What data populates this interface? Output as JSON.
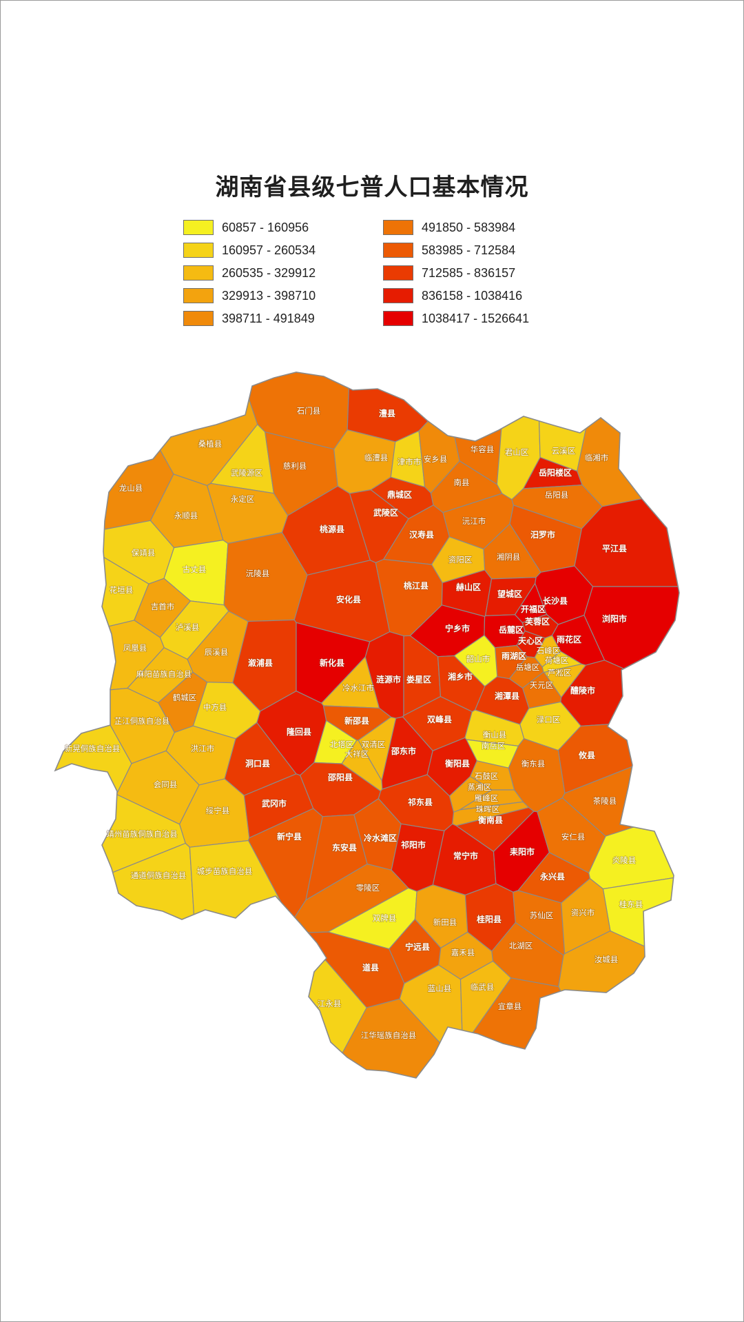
{
  "title": "湖南省县级七普人口基本情况",
  "legend": [
    {
      "label": "60857 - 160956",
      "color": "#f5f021"
    },
    {
      "label": "160957 - 260534",
      "color": "#f5d318"
    },
    {
      "label": "260535 - 329912",
      "color": "#f5bb12"
    },
    {
      "label": "329913 - 398710",
      "color": "#f3a30e"
    },
    {
      "label": "398711 - 491849",
      "color": "#f08a0a"
    },
    {
      "label": "491850 - 583984",
      "color": "#ee7306"
    },
    {
      "label": "583985 - 712584",
      "color": "#ec5a04"
    },
    {
      "label": "712585 - 836157",
      "color": "#ea3b02"
    },
    {
      "label": "836158 - 1038416",
      "color": "#e61c01"
    },
    {
      "label": "1038417 - 1526641",
      "color": "#e50000"
    }
  ],
  "counties": [
    {
      "name": "石门县",
      "cls": 5
    },
    {
      "name": "澧县",
      "cls": 7
    },
    {
      "name": "桑植县",
      "cls": 3
    },
    {
      "name": "武陵源区",
      "cls": 1
    },
    {
      "name": "慈利县",
      "cls": 5
    },
    {
      "name": "临澧县",
      "cls": 3
    },
    {
      "name": "津市市",
      "cls": 1
    },
    {
      "name": "安乡县",
      "cls": 4
    },
    {
      "name": "华容县",
      "cls": 5
    },
    {
      "name": "君山区",
      "cls": 1
    },
    {
      "name": "云溪区",
      "cls": 1
    },
    {
      "name": "临湘市",
      "cls": 4
    },
    {
      "name": "岳阳楼区",
      "cls": 8
    },
    {
      "name": "龙山县",
      "cls": 4
    },
    {
      "name": "永定区",
      "cls": 3
    },
    {
      "name": "鼎城区",
      "cls": 7
    },
    {
      "name": "南县",
      "cls": 5
    },
    {
      "name": "岳阳县",
      "cls": 5
    },
    {
      "name": "永顺县",
      "cls": 3
    },
    {
      "name": "武陵区",
      "cls": 7
    },
    {
      "name": "沅江市",
      "cls": 5
    },
    {
      "name": "桃源县",
      "cls": 7
    },
    {
      "name": "汉寿县",
      "cls": 6
    },
    {
      "name": "汨罗市",
      "cls": 6
    },
    {
      "name": "平江县",
      "cls": 8
    },
    {
      "name": "保靖县",
      "cls": 1
    },
    {
      "name": "古丈县",
      "cls": 0
    },
    {
      "name": "资阳区",
      "cls": 2
    },
    {
      "name": "湘阴县",
      "cls": 5
    },
    {
      "name": "花垣县",
      "cls": 1
    },
    {
      "name": "沅陵县",
      "cls": 5
    },
    {
      "name": "吉首市",
      "cls": 3
    },
    {
      "name": "安化县",
      "cls": 7
    },
    {
      "name": "桃江县",
      "cls": 6
    },
    {
      "name": "赫山区",
      "cls": 8
    },
    {
      "name": "望城区",
      "cls": 8
    },
    {
      "name": "开福区",
      "cls": 9
    },
    {
      "name": "长沙县",
      "cls": 9
    },
    {
      "name": "浏阳市",
      "cls": 9
    },
    {
      "name": "泸溪县",
      "cls": 1
    },
    {
      "name": "宁乡市",
      "cls": 9
    },
    {
      "name": "岳麓区",
      "cls": 9
    },
    {
      "name": "芙蓉区",
      "cls": 8
    },
    {
      "name": "天心区",
      "cls": 8
    },
    {
      "name": "雨花区",
      "cls": 9
    },
    {
      "name": "凤凰县",
      "cls": 2
    },
    {
      "name": "辰溪县",
      "cls": 3
    },
    {
      "name": "雨湖区",
      "cls": 6
    },
    {
      "name": "石峰区",
      "cls": 2
    },
    {
      "name": "荷塘区",
      "cls": 1
    },
    {
      "name": "芦淞区",
      "cls": 2
    },
    {
      "name": "麻阳苗族自治县",
      "cls": 2
    },
    {
      "name": "溆浦县",
      "cls": 7
    },
    {
      "name": "新化县",
      "cls": 9
    },
    {
      "name": "冷水江市",
      "cls": 2
    },
    {
      "name": "涟源市",
      "cls": 8
    },
    {
      "name": "娄星区",
      "cls": 7
    },
    {
      "name": "湘乡市",
      "cls": 7
    },
    {
      "name": "韶山市",
      "cls": 0
    },
    {
      "name": "岳塘区",
      "cls": 5
    },
    {
      "name": "天元区",
      "cls": 5
    },
    {
      "name": "醴陵市",
      "cls": 8
    },
    {
      "name": "鹤城区",
      "cls": 4
    },
    {
      "name": "中方县",
      "cls": 1
    },
    {
      "name": "湘潭县",
      "cls": 7
    },
    {
      "name": "渌口区",
      "cls": 1
    },
    {
      "name": "芷江侗族自治县",
      "cls": 2
    },
    {
      "name": "新晃侗族自治县",
      "cls": 1
    },
    {
      "name": "隆回县",
      "cls": 8
    },
    {
      "name": "新邵县",
      "cls": 6
    },
    {
      "name": "双峰县",
      "cls": 7
    },
    {
      "name": "衡山县",
      "cls": 1
    },
    {
      "name": "南岳区",
      "cls": 0
    },
    {
      "name": "攸县",
      "cls": 6
    },
    {
      "name": "洪江市",
      "cls": 2
    },
    {
      "name": "北塔区",
      "cls": 0
    },
    {
      "name": "双清区",
      "cls": 2
    },
    {
      "name": "大祥区",
      "cls": 2
    },
    {
      "name": "邵东市",
      "cls": 8
    },
    {
      "name": "衡阳县",
      "cls": 8
    },
    {
      "name": "衡东县",
      "cls": 5
    },
    {
      "name": "会同县",
      "cls": 2
    },
    {
      "name": "洞口县",
      "cls": 7
    },
    {
      "name": "邵阳县",
      "cls": 7
    },
    {
      "name": "石鼓区",
      "cls": 3
    },
    {
      "name": "蒸湘区",
      "cls": 3
    },
    {
      "name": "雁峰区",
      "cls": 3
    },
    {
      "name": "珠晖区",
      "cls": 3
    },
    {
      "name": "衡南县",
      "cls": 7
    },
    {
      "name": "茶陵县",
      "cls": 5
    },
    {
      "name": "绥宁县",
      "cls": 2
    },
    {
      "name": "武冈市",
      "cls": 7
    },
    {
      "name": "祁东县",
      "cls": 7
    },
    {
      "name": "靖州苗族侗族自治县",
      "cls": 1
    },
    {
      "name": "新宁县",
      "cls": 6
    },
    {
      "name": "冷水滩区",
      "cls": 6
    },
    {
      "name": "炎陵县",
      "cls": 0
    },
    {
      "name": "安仁县",
      "cls": 5
    },
    {
      "name": "东安县",
      "cls": 6
    },
    {
      "name": "祁阳市",
      "cls": 8
    },
    {
      "name": "常宁市",
      "cls": 8
    },
    {
      "name": "耒阳市",
      "cls": 9
    },
    {
      "name": "通道侗族自治县",
      "cls": 1
    },
    {
      "name": "城步苗族自治县",
      "cls": 1
    },
    {
      "name": "永兴县",
      "cls": 6
    },
    {
      "name": "零陵区",
      "cls": 5
    },
    {
      "name": "桂东县",
      "cls": 0
    },
    {
      "name": "双牌县",
      "cls": 0
    },
    {
      "name": "新田县",
      "cls": 3
    },
    {
      "name": "桂阳县",
      "cls": 7
    },
    {
      "name": "苏仙区",
      "cls": 5
    },
    {
      "name": "资兴市",
      "cls": 3
    },
    {
      "name": "宁远县",
      "cls": 6
    },
    {
      "name": "嘉禾县",
      "cls": 3
    },
    {
      "name": "北湖区",
      "cls": 5
    },
    {
      "name": "汝城县",
      "cls": 3
    },
    {
      "name": "道县",
      "cls": 6
    },
    {
      "name": "蓝山县",
      "cls": 2
    },
    {
      "name": "临武县",
      "cls": 2
    },
    {
      "name": "宜章县",
      "cls": 5
    },
    {
      "name": "江永县",
      "cls": 1
    },
    {
      "name": "江华瑶族自治县",
      "cls": 4
    }
  ]
}
